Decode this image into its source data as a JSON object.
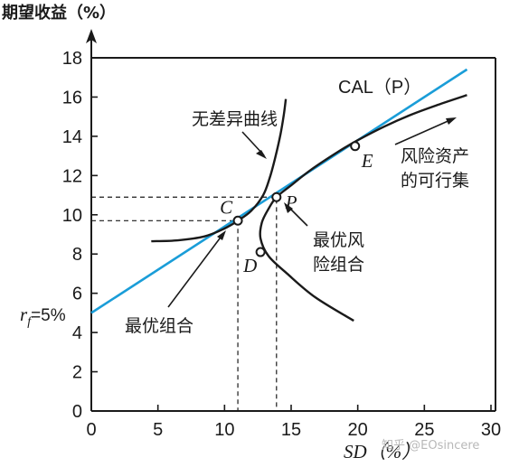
{
  "chart_data": {
    "type": "line",
    "title": "期望收益（%）",
    "xlabel": "SD（%）",
    "xlim": [
      0,
      30
    ],
    "ylim": [
      0,
      18
    ],
    "x_ticks": [
      "0",
      "5",
      "10",
      "15",
      "20",
      "25",
      "30"
    ],
    "y_ticks": [
      "0",
      "2",
      "4",
      "6",
      "8",
      "10",
      "12",
      "14",
      "16",
      "18"
    ],
    "cal": {
      "label": "CAL（P）",
      "intercept": 5,
      "slope": 0.44,
      "color": "#1a9dd8"
    },
    "frontier": {
      "label_line1": "风险资产",
      "label_line2": "的可行集",
      "points": [
        [
          19.7,
          4.6
        ],
        [
          16.8,
          5.8
        ],
        [
          14.7,
          7.0
        ],
        [
          13.3,
          7.9
        ],
        [
          12.7,
          8.8
        ],
        [
          12.8,
          9.6
        ],
        [
          13.3,
          10.3
        ],
        [
          13.9,
          10.9
        ],
        [
          15.0,
          11.5
        ],
        [
          16.5,
          12.3
        ],
        [
          18.5,
          13.2
        ],
        [
          20.0,
          13.8
        ],
        [
          22.0,
          14.5
        ],
        [
          24.0,
          15.1
        ],
        [
          26.0,
          15.6
        ],
        [
          28.2,
          16.1
        ]
      ]
    },
    "indifference_curve": {
      "label": "无差异曲线",
      "points": [
        [
          4.5,
          8.65
        ],
        [
          6.5,
          8.7
        ],
        [
          8.5,
          8.9
        ],
        [
          10.0,
          9.3
        ],
        [
          11.0,
          9.7
        ],
        [
          12.0,
          10.2
        ],
        [
          12.9,
          11.0
        ],
        [
          13.4,
          11.9
        ],
        [
          13.8,
          12.9
        ],
        [
          14.2,
          14.1
        ],
        [
          14.45,
          15.1
        ],
        [
          14.6,
          15.9
        ]
      ]
    },
    "points": [
      {
        "label": "C",
        "x": 11.0,
        "y": 9.7
      },
      {
        "label": "P",
        "x": 13.9,
        "y": 10.9
      },
      {
        "label": "D",
        "x": 12.7,
        "y": 8.1
      },
      {
        "label": "E",
        "x": 19.8,
        "y": 13.5
      }
    ],
    "guides": [
      {
        "x": 11.0,
        "y": 9.7
      },
      {
        "x": 13.9,
        "y": 10.9
      }
    ],
    "annotations": {
      "rf_label": "r",
      "rf_sub": "f",
      "rf_value": "=5%",
      "optimal_complete_label": "最优组合",
      "optimal_risky_line1": "最优风",
      "optimal_risky_line2": "险组合"
    },
    "grid": false,
    "legend": "none"
  },
  "watermark": "知乎 @EOsincere"
}
